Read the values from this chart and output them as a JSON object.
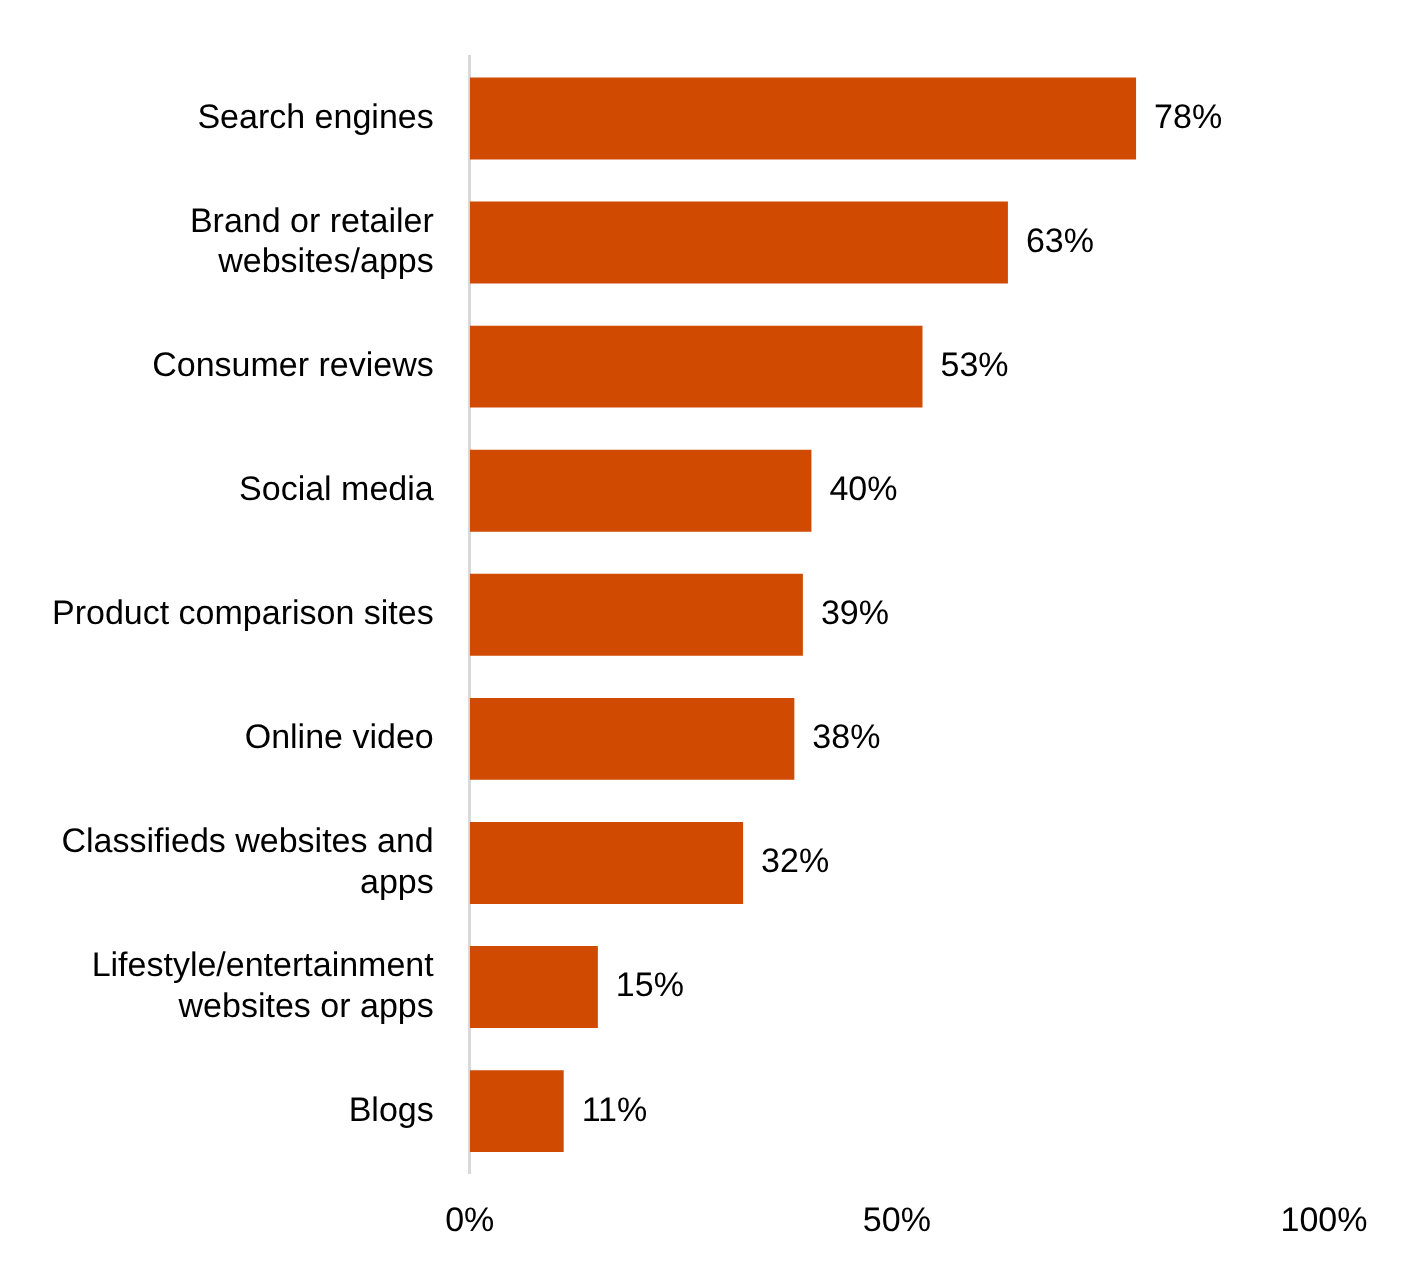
{
  "chart_data": {
    "type": "bar",
    "orientation": "horizontal",
    "categories": [
      "Search engines",
      "Brand or retailer websites/apps",
      "Consumer reviews",
      "Social media",
      "Product comparison sites",
      "Online video",
      "Classifieds websites and apps",
      "Lifestyle/entertainment websites or apps",
      "Blogs"
    ],
    "values": [
      78,
      63,
      53,
      40,
      39,
      38,
      32,
      15,
      11
    ],
    "value_labels": [
      "78%",
      "63%",
      "53%",
      "40%",
      "39%",
      "38%",
      "32%",
      "15%",
      "11%"
    ],
    "color": "#d04a02",
    "xlim": [
      0,
      100
    ],
    "xticks": [
      {
        "value": 0,
        "label": "0%"
      },
      {
        "value": 50,
        "label": "50%"
      },
      {
        "value": 100,
        "label": "100%"
      }
    ],
    "grid": false,
    "legend": false
  }
}
